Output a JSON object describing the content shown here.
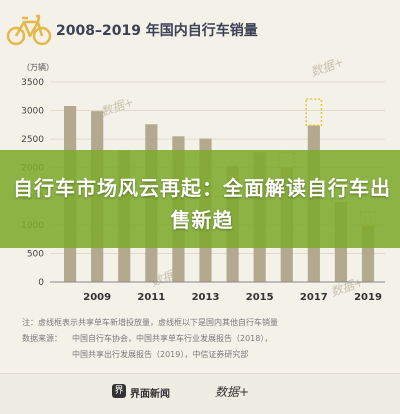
{
  "title": "2008–2019 年国内自行车销量",
  "overlay_text": "自行车市场风云再起：全面解读自行车出售新趋",
  "chart_data": {
    "type": "bar",
    "unit_label": "（万辆）",
    "ylim": [
      0,
      3500
    ],
    "yticks": [
      0,
      500,
      1000,
      1500,
      2000,
      2500,
      3000,
      3500
    ],
    "xlabels": [
      "2009",
      "2011",
      "2013",
      "2015",
      "2017",
      "2019"
    ],
    "categories": [
      "2008",
      "2009",
      "2010",
      "2011",
      "2012",
      "2013",
      "2014",
      "2015",
      "2016",
      "2017",
      "2018",
      "2019"
    ],
    "values": [
      3080,
      2990,
      2300,
      2760,
      2550,
      2510,
      2030,
      2270,
      2000,
      2740,
      1400,
      1000
    ],
    "shared_bike_added": [
      0,
      0,
      0,
      0,
      0,
      0,
      0,
      0,
      270,
      460,
      0,
      230
    ],
    "colors": {
      "base": "#b3a98f",
      "dashed": "#e8c443"
    }
  },
  "footer": {
    "note": "注：虚线框表示共享单车新增投放量，虚线框以下是国内其他自行车销量",
    "source_label": "数据来源：",
    "source_1": "中国自行车协会，中国共享单车行业发展报告（2018），",
    "source_2": "中国共享出行发展报告（2019），中信证券研究部"
  },
  "watermark": "数据+",
  "brand": {
    "logo_glyph": "界",
    "name": "界面新闻",
    "partner": "数据+"
  }
}
